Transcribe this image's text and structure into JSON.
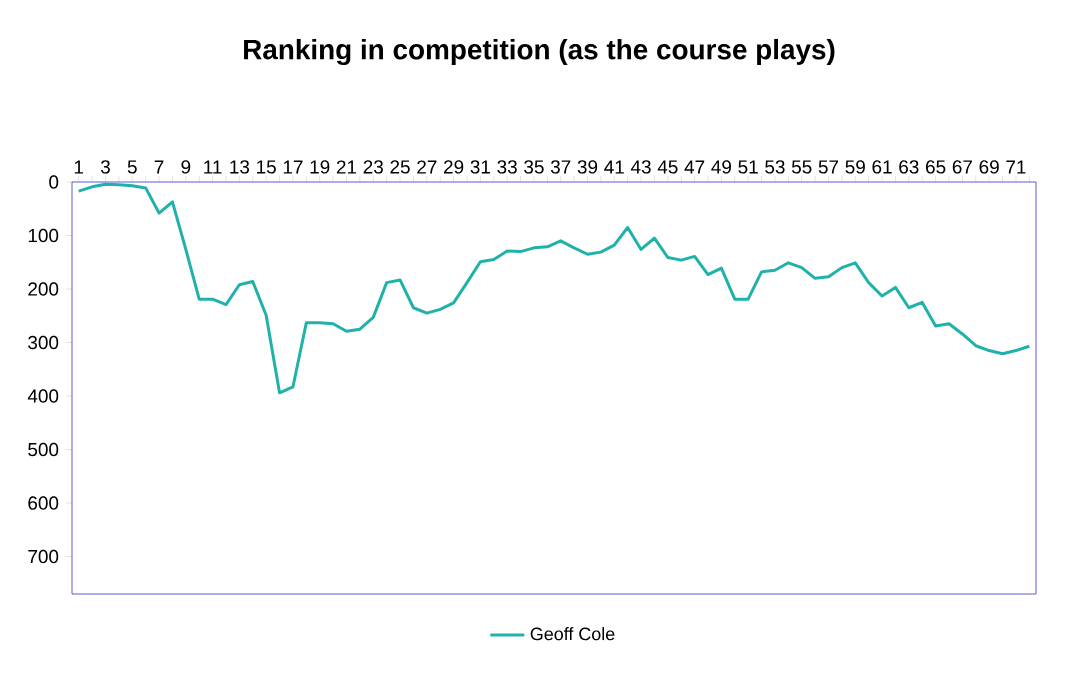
{
  "chart_data": {
    "type": "line",
    "title": "Ranking in competition (as the course plays)",
    "categories": [
      "1",
      null,
      "3",
      null,
      "5",
      null,
      "7",
      null,
      "9",
      null,
      "11",
      null,
      "13",
      null,
      "15",
      null,
      "17",
      null,
      "19",
      null,
      "21",
      null,
      "23",
      null,
      "25",
      null,
      "27",
      null,
      "29",
      null,
      "31",
      null,
      "33",
      null,
      "35",
      null,
      "37",
      null,
      "39",
      null,
      "41",
      null,
      "43",
      null,
      "45",
      null,
      "47",
      null,
      "49",
      null,
      "51",
      null,
      "53",
      null,
      "55",
      null,
      "57",
      null,
      "59",
      null,
      "61",
      null,
      "63",
      null,
      "65",
      null,
      "67",
      null,
      "69",
      null,
      "71",
      null
    ],
    "series": [
      {
        "name": "Geoff Cole",
        "color": "#20b2aa",
        "values": [
          17,
          9,
          4,
          5,
          7,
          11,
          58,
          37,
          126,
          219,
          219,
          229,
          192,
          186,
          249,
          394,
          383,
          263,
          263,
          265,
          279,
          275,
          253,
          188,
          183,
          235,
          245,
          238,
          226,
          188,
          149,
          145,
          129,
          130,
          123,
          121,
          110,
          123,
          135,
          131,
          118,
          85,
          126,
          105,
          141,
          146,
          139,
          173,
          161,
          219,
          219,
          168,
          165,
          151,
          160,
          180,
          177,
          160,
          151,
          188,
          213,
          197,
          235,
          225,
          269,
          265,
          284,
          306,
          315,
          321,
          315,
          307
        ]
      }
    ],
    "ylim": [
      770,
      0
    ],
    "yticks": [
      0,
      100,
      200,
      300,
      400,
      500,
      600,
      700
    ],
    "grid": false,
    "legend": "bottom",
    "marker": "none",
    "line_style": "solid"
  }
}
